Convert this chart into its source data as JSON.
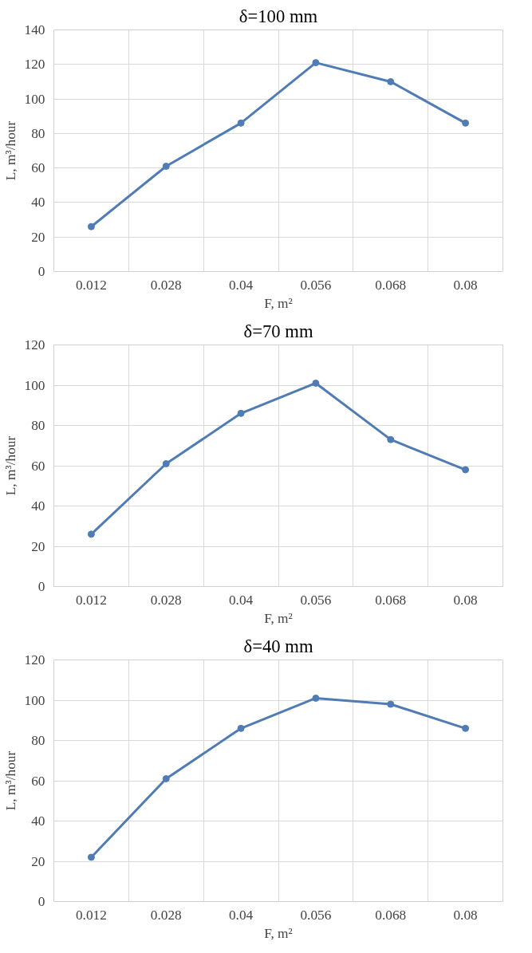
{
  "chart_data": [
    {
      "type": "line",
      "title": "δ=100 mm",
      "xlabel": "F, m²",
      "ylabel": "L, m³/hour",
      "categories": [
        "0.012",
        "0.028",
        "0.04",
        "0.056",
        "0.068",
        "0.08"
      ],
      "series": [
        {
          "color": "#4f7cb5",
          "values": [
            26,
            61,
            86,
            121,
            110,
            86
          ]
        }
      ],
      "ylim": [
        0,
        140
      ],
      "yticks": [
        0,
        20,
        40,
        60,
        80,
        100,
        120,
        140
      ],
      "grid": true,
      "marker": "circle",
      "line_style": "solid"
    },
    {
      "type": "line",
      "title": "δ=70 mm",
      "xlabel": "F, m²",
      "ylabel": "L, m³/hour",
      "categories": [
        "0.012",
        "0.028",
        "0.04",
        "0.056",
        "0.068",
        "0.08"
      ],
      "series": [
        {
          "color": "#4f7cb5",
          "values": [
            26,
            61,
            86,
            101,
            73,
            58
          ]
        }
      ],
      "ylim": [
        0,
        120
      ],
      "yticks": [
        0,
        20,
        40,
        60,
        80,
        100,
        120
      ],
      "grid": true,
      "marker": "circle",
      "line_style": "solid"
    },
    {
      "type": "line",
      "title": "δ=40 mm",
      "xlabel": "F, m²",
      "ylabel": "L, m³/hour",
      "categories": [
        "0.012",
        "0.028",
        "0.04",
        "0.056",
        "0.068",
        "0.08"
      ],
      "series": [
        {
          "color": "#4f7cb5",
          "values": [
            22,
            61,
            86,
            101,
            98,
            86
          ]
        }
      ],
      "ylim": [
        0,
        120
      ],
      "yticks": [
        0,
        20,
        40,
        60,
        80,
        100,
        120
      ],
      "grid": true,
      "marker": "circle",
      "line_style": "solid"
    }
  ]
}
